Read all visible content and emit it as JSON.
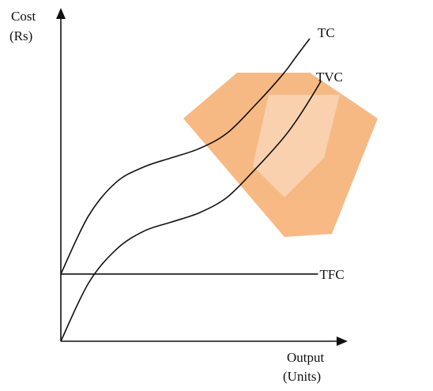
{
  "chart_data": {
    "type": "line",
    "title": "",
    "ylabel_lines": [
      "Cost",
      "(Rs)"
    ],
    "xlabel_lines": [
      "Output",
      "(Units)"
    ],
    "xlim": [
      0,
      10
    ],
    "ylim": [
      0,
      10
    ],
    "grid": false,
    "legend": "none",
    "series": [
      {
        "name": "TC",
        "x": [
          0,
          1,
          2,
          3,
          4,
          5,
          6,
          7,
          8,
          8.5,
          9
        ],
        "values": [
          2.2,
          4.1,
          5.2,
          5.7,
          6.0,
          6.3,
          6.8,
          7.7,
          8.7,
          9.3,
          9.9
        ]
      },
      {
        "name": "TVC",
        "x": [
          0,
          1,
          2,
          3,
          4,
          5,
          6,
          7,
          8,
          8.5,
          9,
          9.4
        ],
        "values": [
          0,
          1.9,
          3.0,
          3.6,
          3.9,
          4.2,
          4.7,
          5.6,
          6.6,
          7.2,
          7.9,
          8.5
        ]
      },
      {
        "name": "TFC",
        "x": [
          0,
          9.3
        ],
        "values": [
          2.2,
          2.2
        ]
      }
    ],
    "colors": {
      "curve": "#111111",
      "watermark": "#f5a25c"
    }
  }
}
